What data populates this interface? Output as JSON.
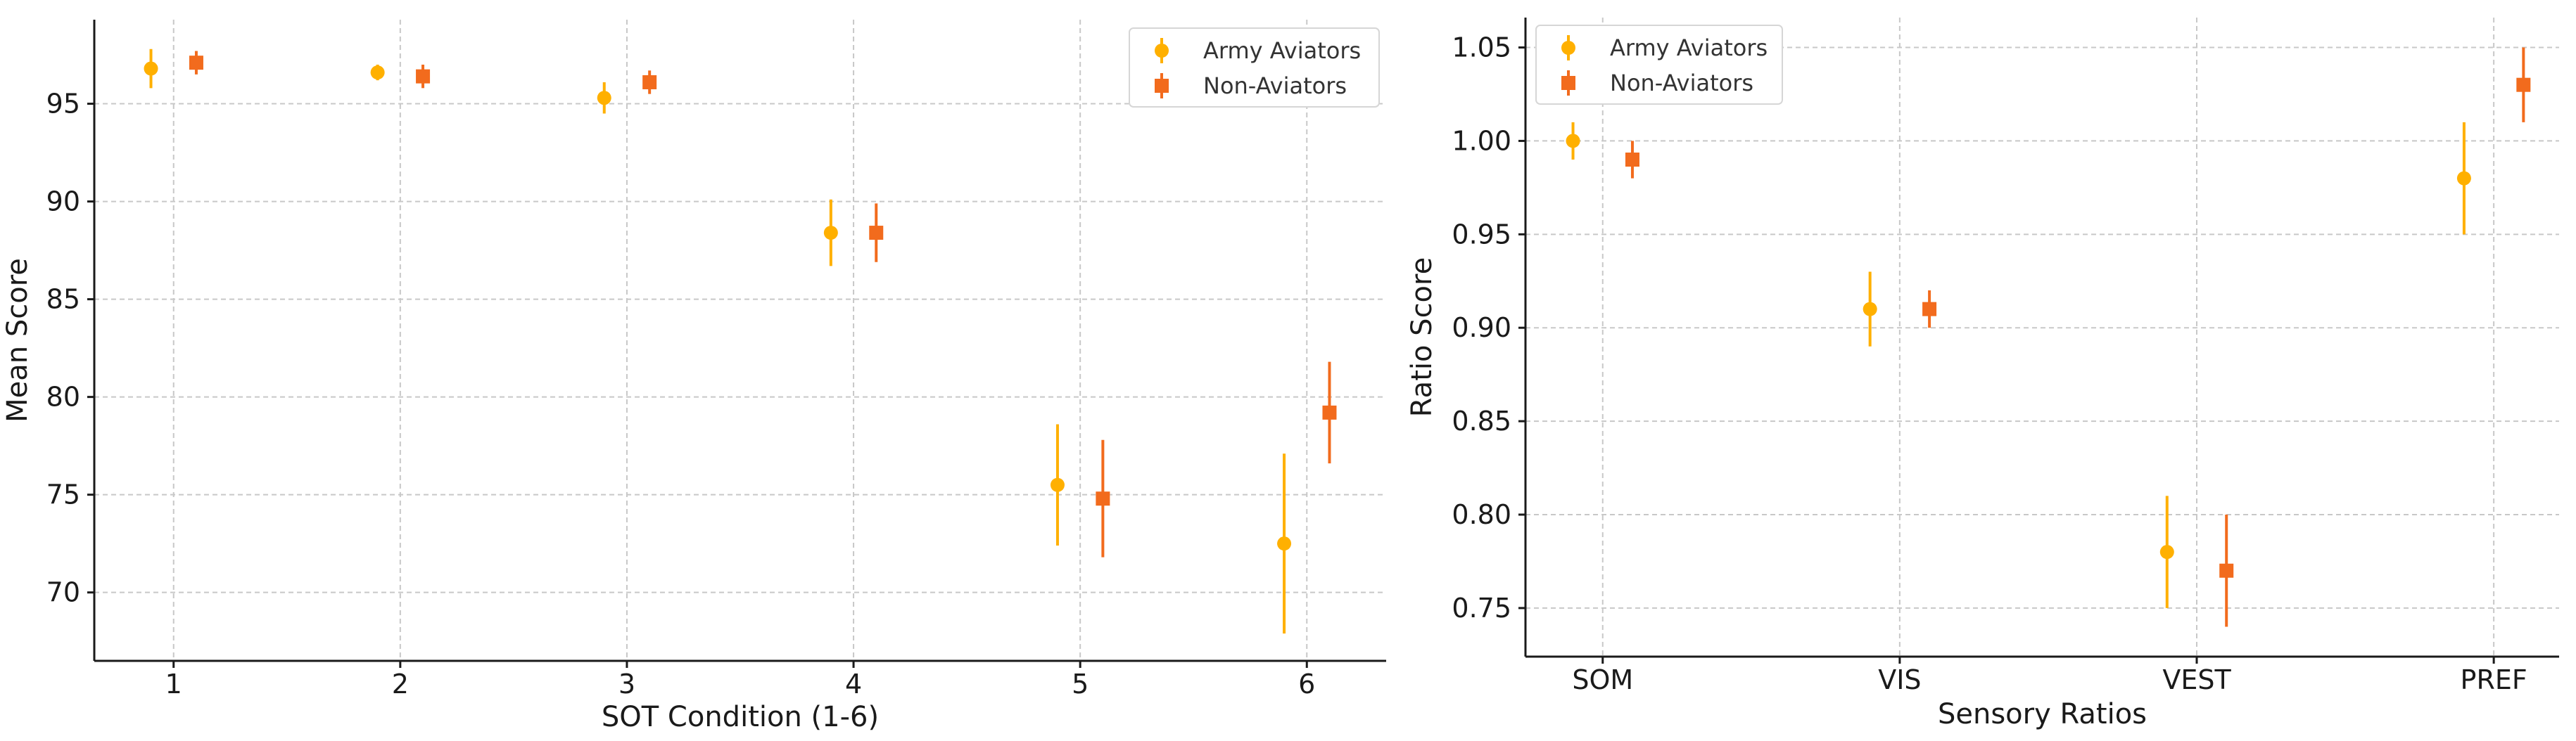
{
  "colors": {
    "aviators": "#FFB000",
    "non_aviators": "#F26B1D"
  },
  "chart_data": [
    {
      "type": "errorbar",
      "title": "",
      "xlabel": "SOT Condition (1-6)",
      "ylabel": "Mean Score",
      "xlim": [
        0.65,
        6.35
      ],
      "ylim": [
        66.5,
        99.3
      ],
      "x_ticks": [
        1,
        2,
        3,
        4,
        5,
        6
      ],
      "x_tick_labels": [
        "1",
        "2",
        "3",
        "4",
        "5",
        "6"
      ],
      "y_ticks": [
        70,
        75,
        80,
        85,
        90,
        95
      ],
      "y_tick_labels": [
        "70",
        "75",
        "80",
        "85",
        "90",
        "95"
      ],
      "grid": true,
      "legend_position": "top-right",
      "series": [
        {
          "name": "Army Aviators",
          "marker": "circle",
          "color_key": "aviators",
          "x": [
            0.9,
            1.9,
            2.9,
            3.9,
            4.9,
            5.9
          ],
          "y": [
            96.8,
            96.6,
            95.3,
            88.4,
            75.5,
            72.5
          ],
          "err": [
            1.0,
            0.4,
            0.8,
            1.7,
            3.1,
            4.6
          ]
        },
        {
          "name": "Non-Aviators",
          "marker": "square",
          "color_key": "non_aviators",
          "x": [
            1.1,
            2.1,
            3.1,
            4.1,
            5.1,
            6.1
          ],
          "y": [
            97.1,
            96.4,
            96.1,
            88.4,
            74.8,
            79.2
          ],
          "err": [
            0.6,
            0.6,
            0.6,
            1.5,
            3.0,
            2.6
          ]
        }
      ]
    },
    {
      "type": "errorbar",
      "title": "",
      "xlabel": "Sensory Ratios",
      "ylabel": "Ratio Score",
      "xlim": [
        -0.26,
        3.22
      ],
      "ylim": [
        0.724,
        1.066
      ],
      "x_ticks": [
        0,
        1,
        2,
        3
      ],
      "x_tick_labels": [
        "SOM",
        "VIS",
        "VEST",
        "PREF"
      ],
      "y_ticks": [
        0.75,
        0.8,
        0.85,
        0.9,
        0.95,
        1.0,
        1.05
      ],
      "y_tick_labels": [
        "0.75",
        "0.80",
        "0.85",
        "0.90",
        "0.95",
        "1.00",
        "1.05"
      ],
      "grid": true,
      "legend_position": "top-left",
      "series": [
        {
          "name": "Army Aviators",
          "marker": "circle",
          "color_key": "aviators",
          "x": [
            -0.1,
            0.9,
            1.9,
            2.9
          ],
          "y": [
            1.0,
            0.91,
            0.78,
            0.98
          ],
          "err": [
            0.01,
            0.02,
            0.03,
            0.03
          ]
        },
        {
          "name": "Non-Aviators",
          "marker": "square",
          "color_key": "non_aviators",
          "x": [
            0.1,
            1.1,
            2.1,
            3.1
          ],
          "y": [
            0.99,
            0.91,
            0.77,
            1.03
          ],
          "err": [
            0.01,
            0.01,
            0.03,
            0.02
          ]
        }
      ]
    }
  ]
}
